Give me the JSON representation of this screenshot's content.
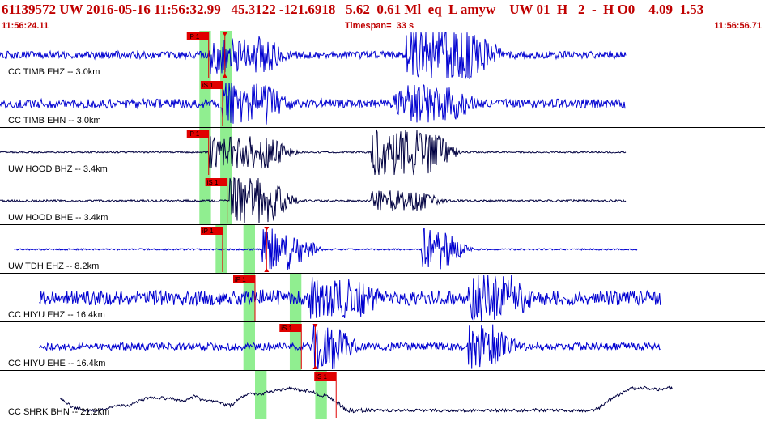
{
  "header": {
    "event_line": "61139572 UW 2016-05-16 11:56:32.99   45.3122 -121.6918   5.62  0.61 Ml  eq  L amyw    UW 01  H   2  -  H O0    4.09  1.53",
    "start_time": "11:56:24.11",
    "timespan": "Timespan=  33 s",
    "end_time": "11:56:56.71"
  },
  "colors": {
    "highlight": "#90ee90",
    "pick": "#e00000",
    "separator": "#000000",
    "trace_blue": "#0000d0",
    "trace_dark": "#000040"
  },
  "traces": [
    {
      "label": "CC TIMB EHZ -- 3.0km",
      "color": "blue",
      "picks": [
        {
          "label": "iP 1",
          "t": 9.0
        },
        {
          "label": "",
          "t": 9.7
        }
      ],
      "highlights": [
        [
          8.6,
          9.1
        ],
        [
          9.5,
          10.0
        ]
      ],
      "arrivals": [
        [
          9.0,
          11.5,
          0.9
        ],
        [
          17.5,
          20.5,
          1.3
        ]
      ],
      "start": 0.0,
      "end": 27.0,
      "base": 0.18,
      "lowfreq": 0
    },
    {
      "label": "CC TIMB EHN -- 3.0km",
      "color": "blue",
      "picks": [
        {
          "label": "iS 1",
          "t": 9.6
        }
      ],
      "highlights": [
        [
          8.6,
          9.1
        ],
        [
          9.5,
          10.0
        ]
      ],
      "arrivals": [
        [
          9.6,
          11.5,
          1.0
        ],
        [
          17.0,
          19.5,
          0.9
        ]
      ],
      "start": 0.0,
      "end": 27.0,
      "base": 0.22,
      "lowfreq": 0
    },
    {
      "label": "UW HOOD BHZ -- 3.4km",
      "color": "dark",
      "picks": [
        {
          "label": "iP 1",
          "t": 9.0
        }
      ],
      "highlights": [
        [
          8.6,
          9.1
        ],
        [
          9.5,
          10.0
        ]
      ],
      "arrivals": [
        [
          9.0,
          11.5,
          0.8
        ],
        [
          16.0,
          18.5,
          1.1
        ]
      ],
      "start": 0.0,
      "end": 27.0,
      "base": 0.04,
      "lowfreq": 0
    },
    {
      "label": "UW HOOD BHE -- 3.4km",
      "color": "dark",
      "picks": [
        {
          "label": "iS 1",
          "t": 9.8
        }
      ],
      "highlights": [
        [
          8.6,
          9.1
        ],
        [
          9.5,
          10.0
        ]
      ],
      "arrivals": [
        [
          9.9,
          11.5,
          1.2
        ],
        [
          16.0,
          18.0,
          0.5
        ]
      ],
      "start": 0.0,
      "end": 27.0,
      "base": 0.05,
      "lowfreq": 0
    },
    {
      "label": "UW TDH EHZ -- 8.2km",
      "color": "blue",
      "picks": [
        {
          "label": "iP 1",
          "t": 9.6
        },
        {
          "label": "",
          "t": 11.5
        }
      ],
      "highlights": [
        [
          9.3,
          9.8
        ],
        [
          10.5,
          11.0
        ]
      ],
      "arrivals": [
        [
          11.3,
          12.5,
          1.0
        ],
        [
          18.2,
          19.0,
          1.0
        ]
      ],
      "start": 0.6,
      "end": 27.5,
      "base": 0.04,
      "lowfreq": 0
    },
    {
      "label": "CC HIYU EHZ -- 16.4km",
      "color": "blue",
      "picks": [
        {
          "label": "iP 1",
          "t": 11.0
        }
      ],
      "highlights": [
        [
          10.5,
          11.0
        ],
        [
          12.5,
          13.0
        ]
      ],
      "arrivals": [
        [
          11.0,
          12.0,
          0.4
        ],
        [
          13.3,
          15.5,
          1.0
        ],
        [
          20.2,
          22.0,
          1.2
        ]
      ],
      "start": 1.7,
      "end": 28.5,
      "base": 0.35,
      "lowfreq": 0
    },
    {
      "label": "CC HIYU EHE -- 16.4km",
      "color": "blue",
      "picks": [
        {
          "label": "iS 1",
          "t": 13.0
        },
        {
          "label": "",
          "t": 13.6
        }
      ],
      "highlights": [
        [
          10.5,
          11.0
        ],
        [
          12.5,
          13.0
        ]
      ],
      "arrivals": [
        [
          13.5,
          14.2,
          1.3
        ],
        [
          20.2,
          21.2,
          1.1
        ]
      ],
      "start": 1.7,
      "end": 28.5,
      "base": 0.18,
      "lowfreq": 0
    },
    {
      "label": "CC SHRK BHN -- 21.2km",
      "color": "dark",
      "picks": [
        {
          "label": "iS 1",
          "t": 14.5
        }
      ],
      "highlights": [
        [
          11.0,
          11.5
        ],
        [
          13.6,
          14.1
        ]
      ],
      "arrivals": [
        [
          14.5,
          15.0,
          0.3
        ]
      ],
      "start": 2.6,
      "end": 29.0,
      "base": 0.05,
      "lowfreq": 1
    }
  ]
}
